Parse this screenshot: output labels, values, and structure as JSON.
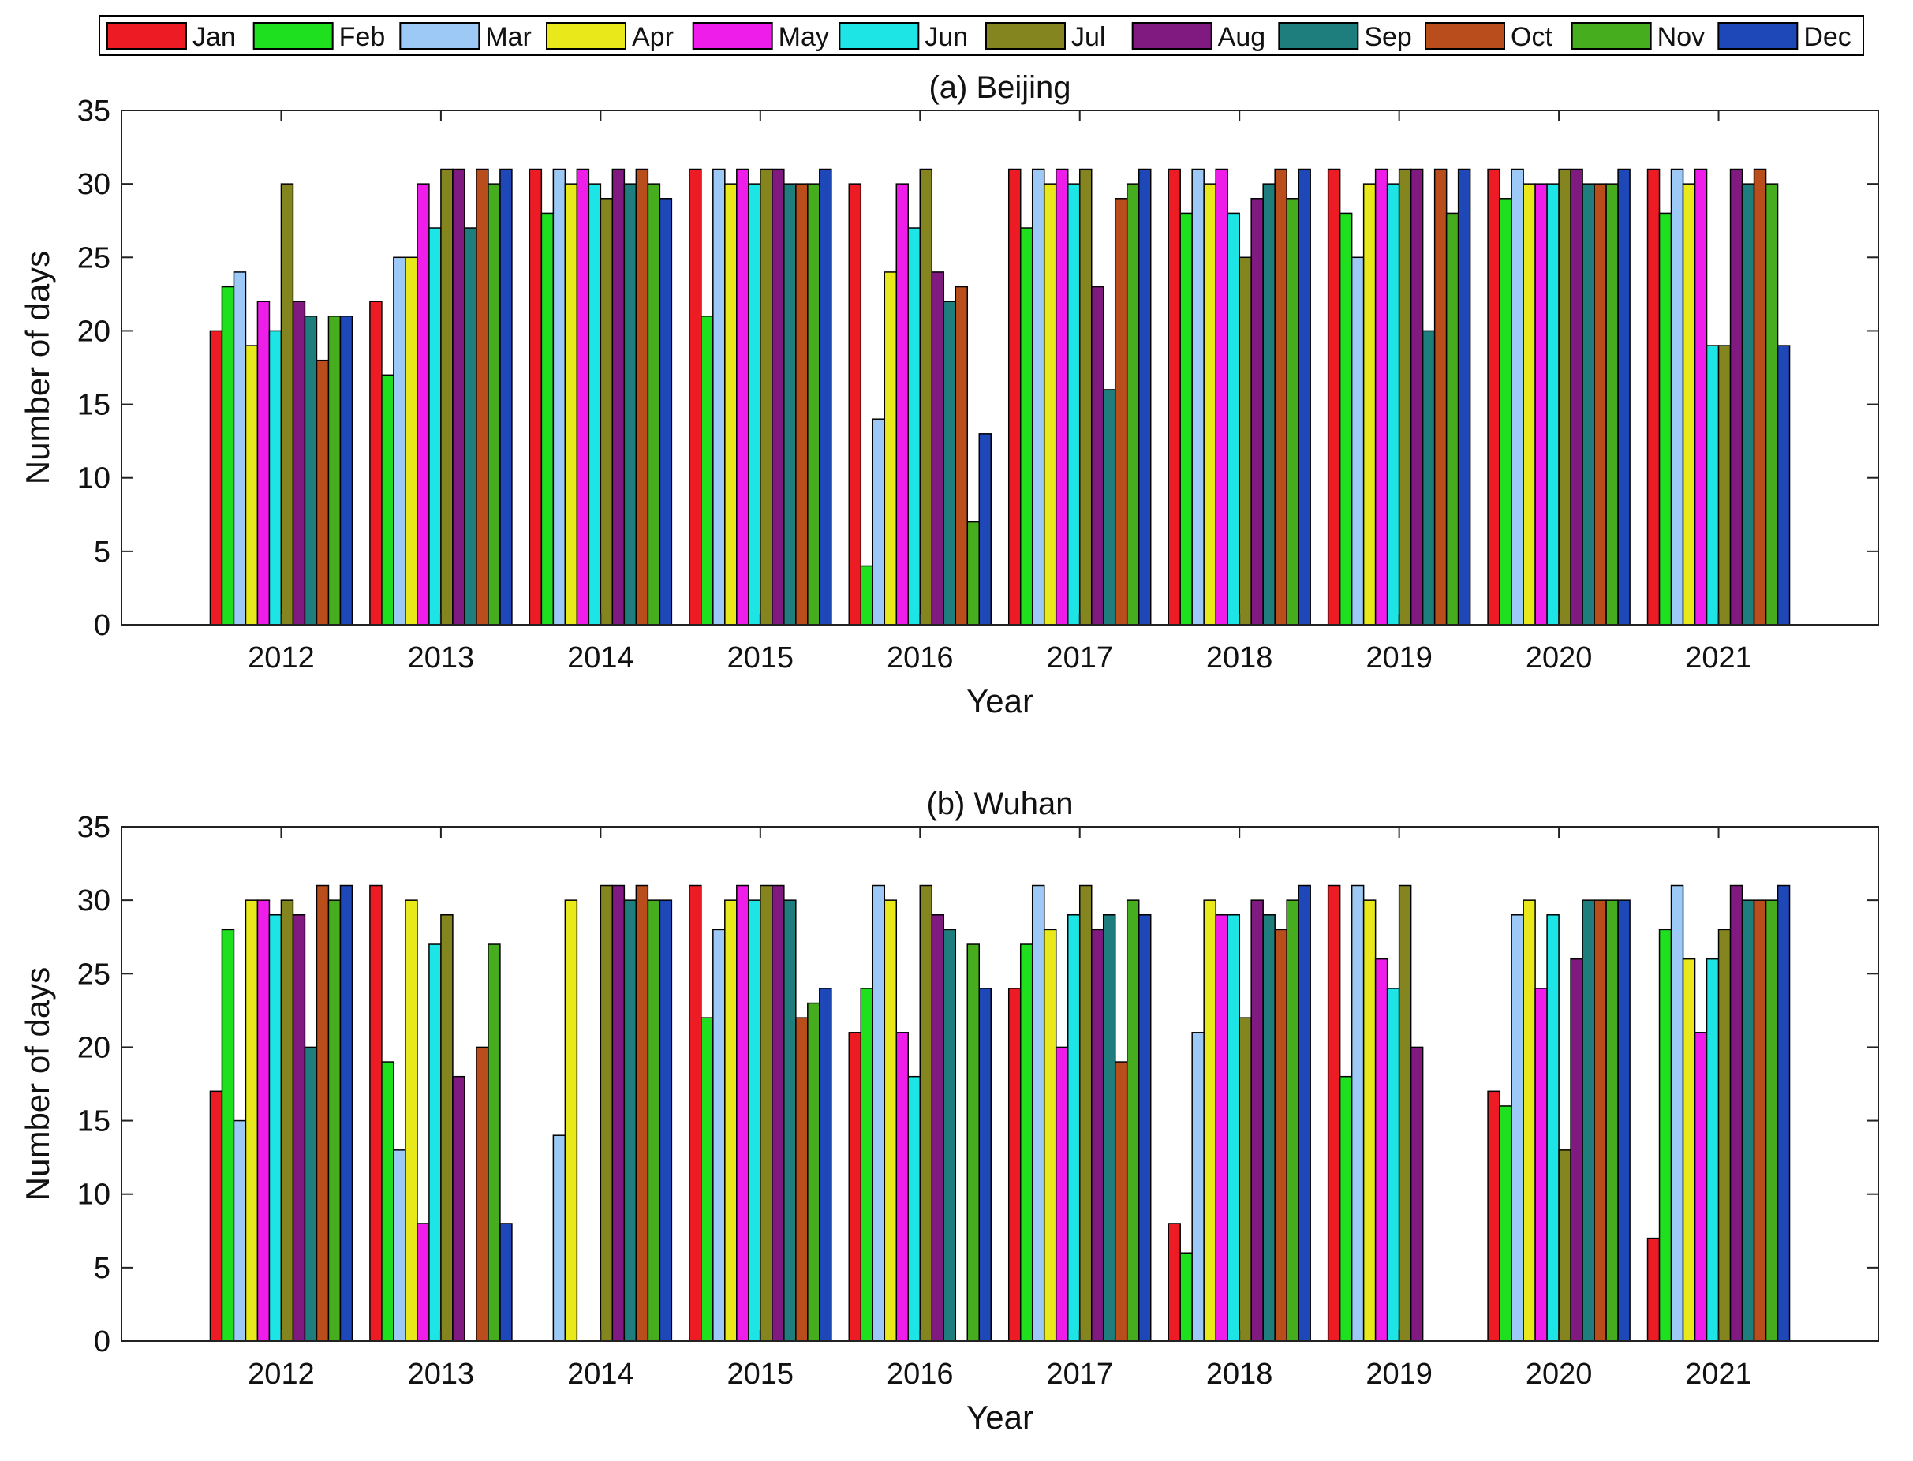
{
  "legend": {
    "months": [
      "Jan",
      "Feb",
      "Mar",
      "Apr",
      "May",
      "Jun",
      "Jul",
      "Aug",
      "Sep",
      "Oct",
      "Nov",
      "Dec"
    ],
    "colors": [
      "#ed1c24",
      "#1ee01e",
      "#9cc9f5",
      "#e8e81a",
      "#ee1de9",
      "#1de5e5",
      "#858520",
      "#801a80",
      "#1e7e7e",
      "#b94d1c",
      "#46ad1e",
      "#1e47b8"
    ]
  },
  "chart_data": [
    {
      "type": "bar",
      "title": "(a) Beijing",
      "xlabel": "Year",
      "ylabel": "Number of days",
      "ylim": [
        0,
        35
      ],
      "yticks": [
        0,
        5,
        10,
        15,
        20,
        25,
        30,
        35
      ],
      "categories": [
        "2012",
        "2013",
        "2014",
        "2015",
        "2016",
        "2017",
        "2018",
        "2019",
        "2020",
        "2021"
      ],
      "series": [
        {
          "name": "Jan",
          "values": [
            20,
            22,
            31,
            31,
            30,
            31,
            31,
            31,
            31,
            31
          ]
        },
        {
          "name": "Feb",
          "values": [
            23,
            17,
            28,
            21,
            4,
            27,
            28,
            28,
            29,
            28
          ]
        },
        {
          "name": "Mar",
          "values": [
            24,
            25,
            31,
            31,
            14,
            31,
            31,
            25,
            31,
            31
          ]
        },
        {
          "name": "Apr",
          "values": [
            19,
            25,
            30,
            30,
            24,
            30,
            30,
            30,
            30,
            30
          ]
        },
        {
          "name": "May",
          "values": [
            22,
            30,
            31,
            31,
            30,
            31,
            31,
            31,
            30,
            31
          ]
        },
        {
          "name": "Jun",
          "values": [
            20,
            27,
            30,
            30,
            27,
            30,
            28,
            30,
            30,
            19
          ]
        },
        {
          "name": "Jul",
          "values": [
            30,
            31,
            29,
            31,
            31,
            31,
            25,
            31,
            31,
            19
          ]
        },
        {
          "name": "Aug",
          "values": [
            22,
            31,
            31,
            31,
            24,
            23,
            29,
            31,
            31,
            31
          ]
        },
        {
          "name": "Sep",
          "values": [
            21,
            27,
            30,
            30,
            22,
            16,
            30,
            20,
            30,
            30
          ]
        },
        {
          "name": "Oct",
          "values": [
            18,
            31,
            31,
            30,
            23,
            29,
            31,
            31,
            30,
            31
          ]
        },
        {
          "name": "Nov",
          "values": [
            21,
            30,
            30,
            30,
            7,
            30,
            29,
            28,
            30,
            30
          ]
        },
        {
          "name": "Dec",
          "values": [
            21,
            31,
            29,
            31,
            13,
            31,
            31,
            31,
            31,
            19
          ]
        }
      ]
    },
    {
      "type": "bar",
      "title": "(b) Wuhan",
      "xlabel": "Year",
      "ylabel": "Number of days",
      "ylim": [
        0,
        35
      ],
      "yticks": [
        0,
        5,
        10,
        15,
        20,
        25,
        30,
        35
      ],
      "categories": [
        "2012",
        "2013",
        "2014",
        "2015",
        "2016",
        "2017",
        "2018",
        "2019",
        "2020",
        "2021"
      ],
      "series": [
        {
          "name": "Jan",
          "values": [
            17,
            31,
            0,
            31,
            21,
            24,
            8,
            31,
            17,
            7
          ]
        },
        {
          "name": "Feb",
          "values": [
            28,
            19,
            0,
            22,
            24,
            27,
            6,
            18,
            16,
            28
          ]
        },
        {
          "name": "Mar",
          "values": [
            15,
            13,
            14,
            28,
            31,
            31,
            21,
            31,
            29,
            31
          ]
        },
        {
          "name": "Apr",
          "values": [
            30,
            30,
            30,
            30,
            30,
            28,
            30,
            30,
            30,
            26
          ]
        },
        {
          "name": "May",
          "values": [
            30,
            8,
            0,
            31,
            21,
            20,
            29,
            26,
            24,
            21
          ]
        },
        {
          "name": "Jun",
          "values": [
            29,
            27,
            0,
            30,
            18,
            29,
            29,
            24,
            29,
            26
          ]
        },
        {
          "name": "Jul",
          "values": [
            30,
            29,
            31,
            31,
            31,
            31,
            22,
            31,
            13,
            28
          ]
        },
        {
          "name": "Aug",
          "values": [
            29,
            18,
            31,
            31,
            29,
            28,
            30,
            20,
            26,
            31
          ]
        },
        {
          "name": "Sep",
          "values": [
            20,
            0,
            30,
            30,
            28,
            29,
            29,
            0,
            30,
            30
          ]
        },
        {
          "name": "Oct",
          "values": [
            31,
            20,
            31,
            22,
            0,
            19,
            28,
            0,
            30,
            30
          ]
        },
        {
          "name": "Nov",
          "values": [
            30,
            27,
            30,
            23,
            27,
            30,
            30,
            0,
            30,
            30
          ]
        },
        {
          "name": "Dec",
          "values": [
            31,
            8,
            30,
            24,
            24,
            29,
            31,
            0,
            30,
            31
          ]
        }
      ]
    }
  ]
}
